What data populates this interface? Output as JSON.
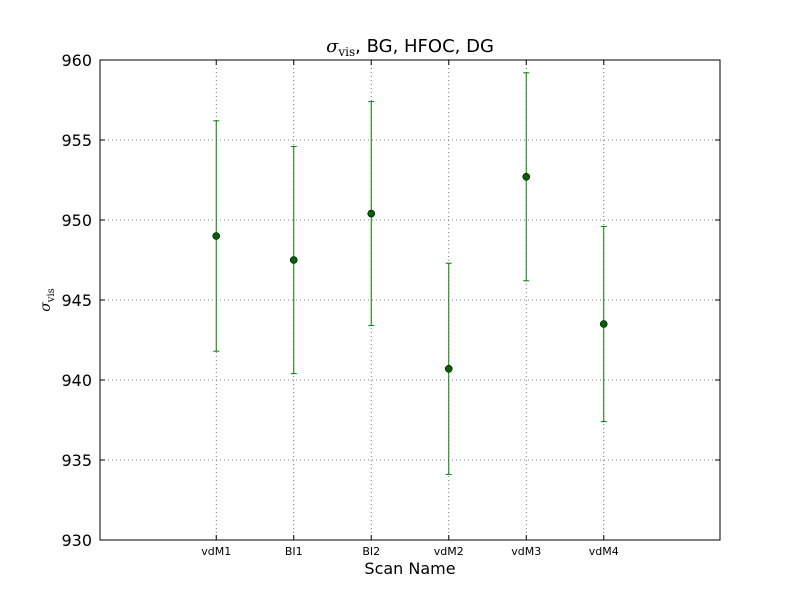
{
  "chart_data": {
    "type": "scatter",
    "title": {
      "symbol": "σ",
      "subscript": "vis",
      "rest": ", BG, HFOC, DG"
    },
    "xlabel": "Scan Name",
    "ylabel": {
      "symbol": "σ",
      "subscript": "vis"
    },
    "ylim": [
      930,
      960
    ],
    "yticks": [
      "930",
      "935",
      "940",
      "945",
      "950",
      "955",
      "960"
    ],
    "categories": [
      "vdM1",
      "BI1",
      "BI2",
      "vdM2",
      "vdM3",
      "vdM4"
    ],
    "values": [
      949.0,
      947.5,
      950.4,
      940.7,
      952.7,
      943.5
    ],
    "errors": [
      7.2,
      7.1,
      7.0,
      6.6,
      6.5,
      6.1
    ],
    "grid": true,
    "colors": {
      "marker": "#006400",
      "errorbar": "#008000",
      "grid": "#555555",
      "axes": "#000000"
    }
  }
}
